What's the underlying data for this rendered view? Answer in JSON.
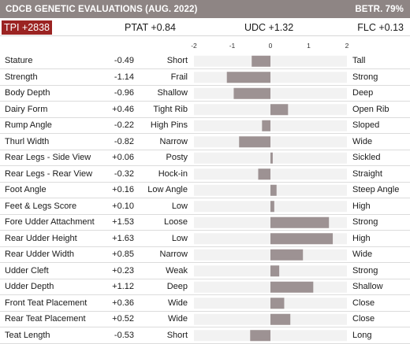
{
  "header": {
    "title": "CDCB GENETIC EVALUATIONS (AUG. 2022)",
    "reliability": "BETR. 79%"
  },
  "summary": {
    "tpi": "TPI +2838",
    "ptat": "PTAT +0.84",
    "udc": "UDC +1.32",
    "flc": "FLC +0.13"
  },
  "colors": {
    "header_bg": "#8e8584",
    "tpi_badge": "#9b2322",
    "bar": "#9d9293",
    "track": "#f2f2f2"
  },
  "chart_data": {
    "type": "bar",
    "orientation": "horizontal",
    "xlim": [
      -2,
      2
    ],
    "xticks": [
      "-2",
      "-1",
      "0",
      "1",
      "2"
    ],
    "grid": false,
    "categories": [
      "Stature",
      "Strength",
      "Body Depth",
      "Dairy Form",
      "Rump Angle",
      "Thurl Width",
      "Rear Legs - Side View",
      "Rear Legs - Rear View",
      "Foot Angle",
      "Feet & Legs Score",
      "Fore Udder Attachment",
      "Rear Udder Height",
      "Rear Udder Width",
      "Udder Cleft",
      "Udder Depth",
      "Front Teat Placement",
      "Rear Teat Placement",
      "Teat Length"
    ],
    "values": [
      -0.49,
      -1.14,
      -0.96,
      0.46,
      -0.22,
      -0.82,
      0.06,
      -0.32,
      0.16,
      0.1,
      1.53,
      1.63,
      0.85,
      0.23,
      1.12,
      0.36,
      0.52,
      -0.53
    ],
    "value_labels": [
      "-0.49",
      "-1.14",
      "-0.96",
      "+0.46",
      "-0.22",
      "-0.82",
      "+0.06",
      "-0.32",
      "+0.16",
      "+0.10",
      "+1.53",
      "+1.63",
      "+0.85",
      "+0.23",
      "+1.12",
      "+0.36",
      "+0.52",
      "-0.53"
    ],
    "low_labels": [
      "Short",
      "Frail",
      "Shallow",
      "Tight Rib",
      "High Pins",
      "Narrow",
      "Posty",
      "Hock-in",
      "Low Angle",
      "Low",
      "Loose",
      "Low",
      "Narrow",
      "Weak",
      "Deep",
      "Wide",
      "Wide",
      "Short"
    ],
    "high_labels": [
      "Tall",
      "Strong",
      "Deep",
      "Open Rib",
      "Sloped",
      "Wide",
      "Sickled",
      "Straight",
      "Steep Angle",
      "High",
      "Strong",
      "High",
      "Wide",
      "Strong",
      "Shallow",
      "Close",
      "Close",
      "Long"
    ]
  }
}
